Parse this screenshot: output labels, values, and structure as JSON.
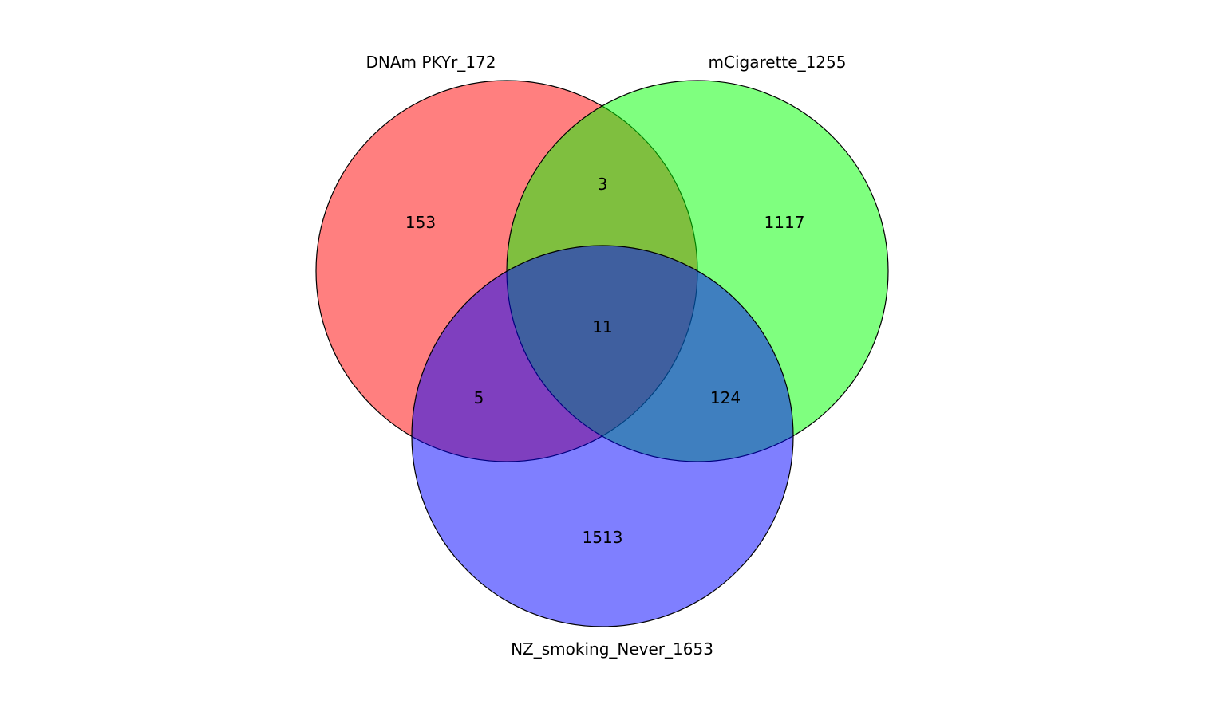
{
  "venn": {
    "sets": [
      {
        "id": "A",
        "label": "DNAm PKYr_172",
        "color": "#ff0000"
      },
      {
        "id": "B",
        "label": "mCigarette_1255",
        "color": "#00ff00"
      },
      {
        "id": "C",
        "label": "NZ_smoking_Never_1653",
        "color": "#0000ff"
      }
    ],
    "fill_opacity": 0.5,
    "regions": {
      "A_only": "153",
      "B_only": "1117",
      "C_only": "1513",
      "A_B": "3",
      "A_C": "5",
      "B_C": "124",
      "A_B_C": "11"
    }
  }
}
